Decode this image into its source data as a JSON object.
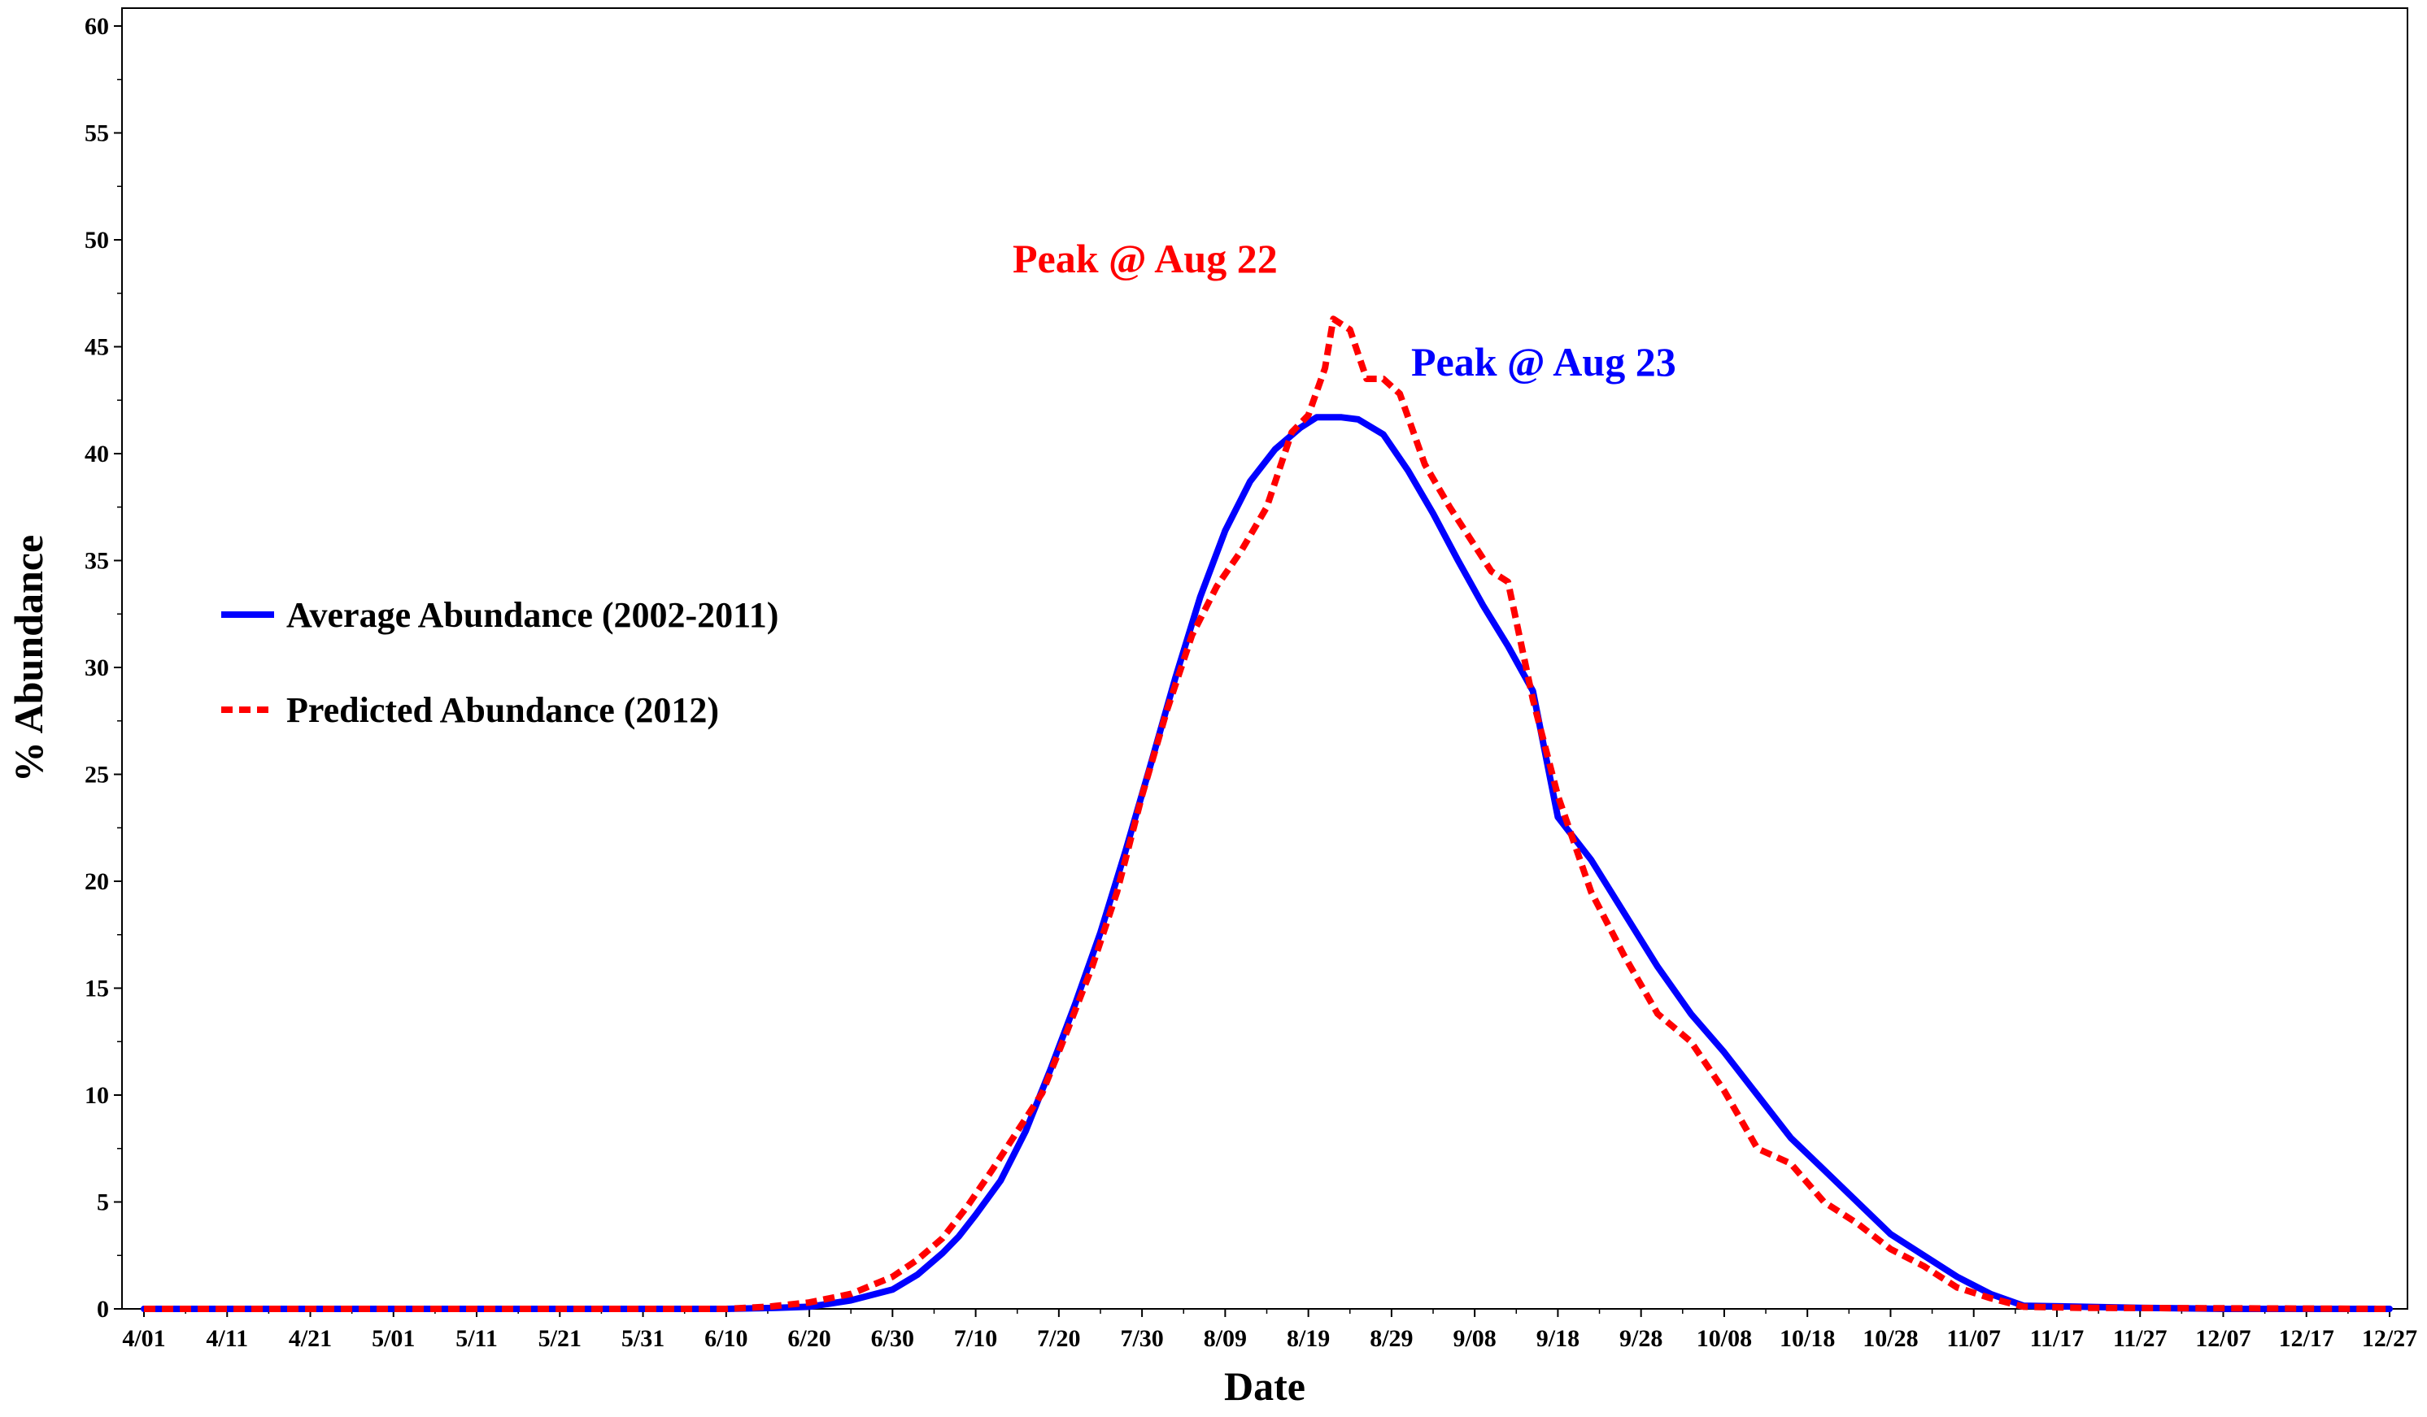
{
  "chart_data": {
    "type": "line",
    "title": "",
    "xlabel": "Date",
    "ylabel": "% Abundance",
    "ylim": [
      0,
      60
    ],
    "yticks": [
      0,
      5,
      10,
      15,
      20,
      25,
      30,
      35,
      40,
      45,
      50,
      55,
      60
    ],
    "xlim": [
      "4/01",
      "12/27"
    ],
    "xticks": [
      "4/01",
      "4/11",
      "4/21",
      "5/01",
      "5/11",
      "5/21",
      "5/31",
      "6/10",
      "6/20",
      "6/30",
      "7/10",
      "7/20",
      "7/30",
      "8/09",
      "8/19",
      "8/29",
      "9/08",
      "9/18",
      "9/28",
      "10/08",
      "10/18",
      "10/28",
      "11/07",
      "11/17",
      "11/27",
      "12/07",
      "12/17",
      "12/27"
    ],
    "grid": false,
    "legend_position": "left",
    "series": [
      {
        "name": "Average Abundance (2002-2011)",
        "color": "#0000ff",
        "style": "solid",
        "points": [
          [
            "4/01",
            0
          ],
          [
            "6/10",
            0
          ],
          [
            "6/16",
            0.05
          ],
          [
            "6/20",
            0.1
          ],
          [
            "6/25",
            0.4
          ],
          [
            "6/30",
            0.9
          ],
          [
            "7/03",
            1.6
          ],
          [
            "7/06",
            2.6
          ],
          [
            "7/08",
            3.4
          ],
          [
            "7/10",
            4.4
          ],
          [
            "7/13",
            6.0
          ],
          [
            "7/16",
            8.3
          ],
          [
            "7/19",
            11.2
          ],
          [
            "7/22",
            14.3
          ],
          [
            "7/25",
            17.6
          ],
          [
            "7/28",
            21.4
          ],
          [
            "7/31",
            25.4
          ],
          [
            "8/03",
            29.5
          ],
          [
            "8/06",
            33.3
          ],
          [
            "8/09",
            36.4
          ],
          [
            "8/12",
            38.7
          ],
          [
            "8/15",
            40.2
          ],
          [
            "8/18",
            41.2
          ],
          [
            "8/20",
            41.7
          ],
          [
            "8/23",
            41.7
          ],
          [
            "8/25",
            41.6
          ],
          [
            "8/28",
            40.9
          ],
          [
            "8/31",
            39.2
          ],
          [
            "9/03",
            37.2
          ],
          [
            "9/06",
            35.0
          ],
          [
            "9/09",
            32.9
          ],
          [
            "9/12",
            31.0
          ],
          [
            "9/15",
            28.9
          ],
          [
            "9/18",
            23.0
          ],
          [
            "9/22",
            21.0
          ],
          [
            "9/26",
            18.5
          ],
          [
            "9/30",
            16.0
          ],
          [
            "10/04",
            13.8
          ],
          [
            "10/08",
            12.0
          ],
          [
            "10/12",
            10.0
          ],
          [
            "10/16",
            8.0
          ],
          [
            "10/20",
            6.5
          ],
          [
            "10/24",
            5.0
          ],
          [
            "10/28",
            3.5
          ],
          [
            "11/01",
            2.5
          ],
          [
            "11/05",
            1.5
          ],
          [
            "11/09",
            0.7
          ],
          [
            "11/13",
            0.15
          ],
          [
            "11/20",
            0.1
          ],
          [
            "11/27",
            0.05
          ],
          [
            "12/07",
            0
          ],
          [
            "12/27",
            0
          ]
        ]
      },
      {
        "name": "Predicted Abundance (2012)",
        "color": "#ff0000",
        "style": "dashed",
        "points": [
          [
            "4/01",
            0
          ],
          [
            "6/10",
            0
          ],
          [
            "6/15",
            0.1
          ],
          [
            "6/20",
            0.3
          ],
          [
            "6/25",
            0.7
          ],
          [
            "6/30",
            1.5
          ],
          [
            "7/03",
            2.3
          ],
          [
            "7/06",
            3.3
          ],
          [
            "7/09",
            4.8
          ],
          [
            "7/12",
            6.5
          ],
          [
            "7/15",
            8.3
          ],
          [
            "7/18",
            10.1
          ],
          [
            "7/21",
            13.0
          ],
          [
            "7/24",
            16.0
          ],
          [
            "7/27",
            19.5
          ],
          [
            "7/30",
            24.0
          ],
          [
            "8/02",
            28.0
          ],
          [
            "8/05",
            31.5
          ],
          [
            "8/08",
            33.8
          ],
          [
            "8/11",
            35.5
          ],
          [
            "8/14",
            37.5
          ],
          [
            "8/17",
            41.0
          ],
          [
            "8/19",
            41.8
          ],
          [
            "8/21",
            44.0
          ],
          [
            "8/22",
            46.3
          ],
          [
            "8/24",
            45.8
          ],
          [
            "8/26",
            43.5
          ],
          [
            "8/28",
            43.5
          ],
          [
            "8/30",
            42.8
          ],
          [
            "9/02",
            39.5
          ],
          [
            "9/05",
            37.5
          ],
          [
            "9/08",
            35.7
          ],
          [
            "9/10",
            34.5
          ],
          [
            "9/12",
            34.0
          ],
          [
            "9/15",
            28.5
          ],
          [
            "9/18",
            24.0
          ],
          [
            "9/22",
            19.5
          ],
          [
            "9/26",
            16.5
          ],
          [
            "9/30",
            13.8
          ],
          [
            "10/04",
            12.5
          ],
          [
            "10/08",
            10.2
          ],
          [
            "10/12",
            7.5
          ],
          [
            "10/16",
            6.8
          ],
          [
            "10/20",
            5.0
          ],
          [
            "10/24",
            4.0
          ],
          [
            "10/28",
            2.8
          ],
          [
            "11/01",
            2.0
          ],
          [
            "11/05",
            1.0
          ],
          [
            "11/09",
            0.5
          ],
          [
            "11/13",
            0.1
          ],
          [
            "11/20",
            0.05
          ],
          [
            "12/27",
            0
          ]
        ]
      }
    ],
    "annotations": [
      {
        "text": "Peak @ Aug 22",
        "color": "#ff0000"
      },
      {
        "text": "Peak @ Aug 23",
        "color": "#0000ff"
      }
    ]
  }
}
